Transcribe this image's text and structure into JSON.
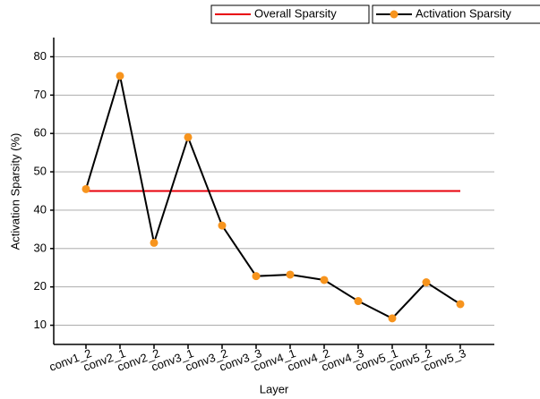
{
  "chart_data": {
    "type": "line",
    "x_label": "Layer",
    "y_label": "Activation Sparsity (%)",
    "categories": [
      "conv1_2",
      "conv2_1",
      "conv2_2",
      "conv3_1",
      "conv3_2",
      "conv3_3",
      "conv4_1",
      "conv4_2",
      "conv4_3",
      "conv5_1",
      "conv5_2",
      "conv5_3"
    ],
    "series": [
      {
        "name": "Overall Sparsity",
        "color": "#e8000b",
        "values": [
          45,
          45,
          45,
          45,
          45,
          45,
          45,
          45,
          45,
          45,
          45,
          45
        ]
      },
      {
        "name": "Activation Sparsity",
        "color": "#000000",
        "marker_color": "#f7941d",
        "values": [
          45.5,
          75,
          31.5,
          59,
          36,
          22.8,
          23.2,
          21.8,
          16.3,
          11.8,
          21.2,
          15.5
        ]
      }
    ],
    "ylim": [
      5,
      85
    ],
    "yticks": [
      10,
      20,
      30,
      40,
      50,
      60,
      70,
      80
    ],
    "grid": true,
    "legend": "top-right"
  }
}
